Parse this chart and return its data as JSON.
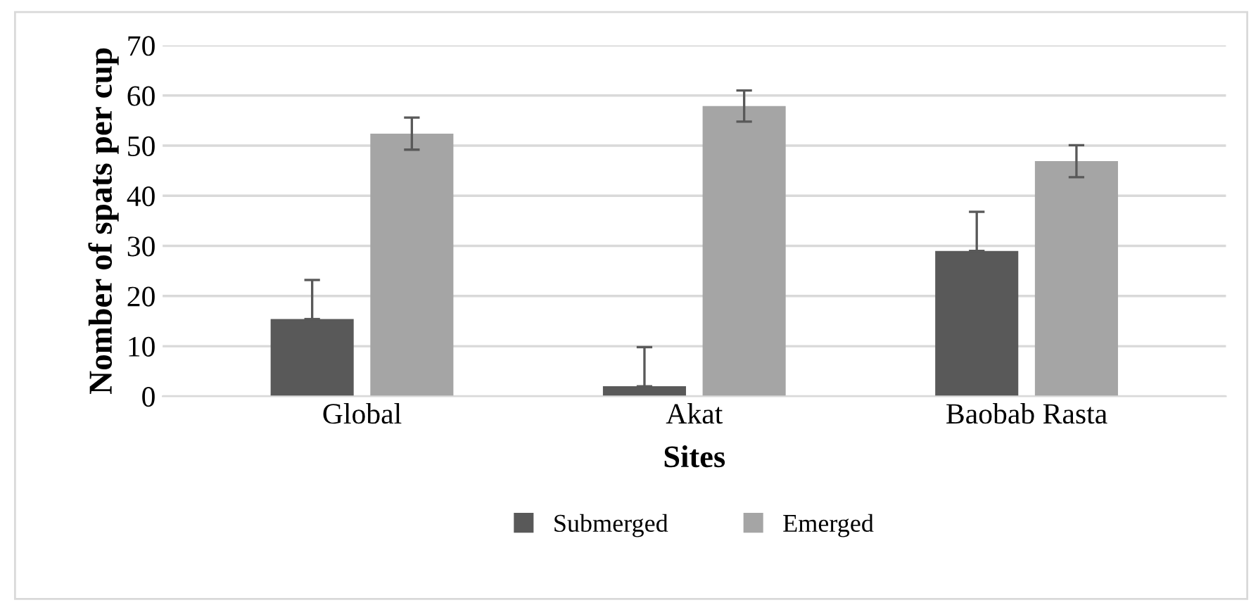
{
  "chart_data": {
    "type": "bar",
    "xlabel": "Sites",
    "ylabel": "Nomber of spats per cup",
    "categories": [
      "Global",
      "Akat",
      "Baobab Rasta"
    ],
    "series": [
      {
        "name": "Submerged",
        "color": "#595959",
        "values": [
          15.4,
          2.0,
          29.0
        ],
        "errors": [
          [
            15.4,
            23.2
          ],
          [
            2.0,
            9.8
          ],
          [
            29.0,
            36.8
          ]
        ]
      },
      {
        "name": "Emerged",
        "color": "#a5a5a5",
        "values": [
          52.4,
          57.9,
          46.9
        ],
        "errors": [
          3.2,
          3.1,
          3.2
        ]
      }
    ],
    "ylim": [
      0,
      70
    ],
    "yticks": [
      0,
      10,
      20,
      30,
      40,
      50,
      60,
      70
    ],
    "grid": "y",
    "legend": "bottom"
  }
}
